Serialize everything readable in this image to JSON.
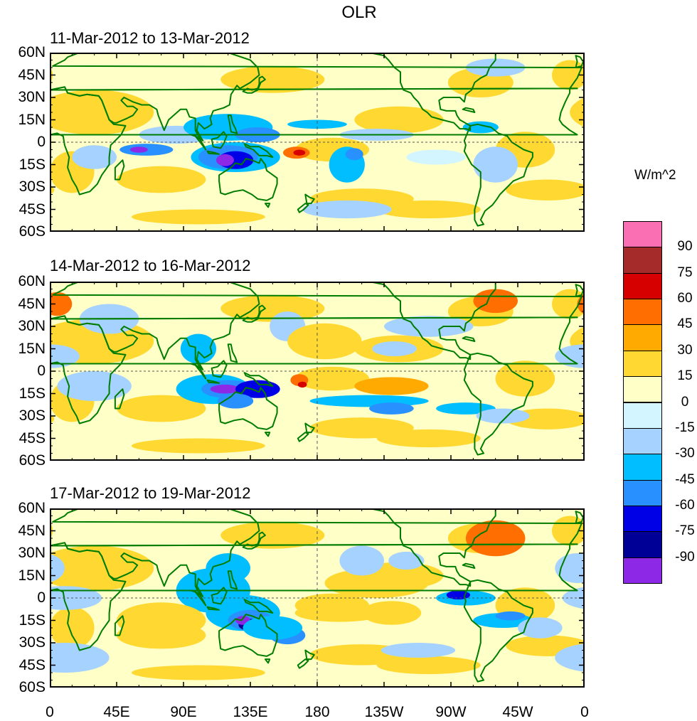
{
  "title": "OLR",
  "panels": [
    {
      "label": "11-Mar-2012 to 13-Mar-2012"
    },
    {
      "label": "14-Mar-2012 to 16-Mar-2012"
    },
    {
      "label": "17-Mar-2012 to 19-Mar-2012"
    }
  ],
  "lat_ticks": [
    "60N",
    "45N",
    "30N",
    "15N",
    "0",
    "15S",
    "30S",
    "45S",
    "60S"
  ],
  "lon_ticks": [
    "0",
    "45E",
    "90E",
    "135E",
    "180",
    "135W",
    "90W",
    "45W",
    "0"
  ],
  "colorbar": {
    "units": "W/m^2",
    "labels": [
      "90",
      "75",
      "60",
      "45",
      "30",
      "15",
      "0",
      "-15",
      "-30",
      "-45",
      "-60",
      "-75",
      "-90"
    ],
    "colors": [
      "#fa6eb4",
      "#a52a2a",
      "#d70000",
      "#ff6e00",
      "#ffaa00",
      "#ffd932",
      "#ffffc8",
      "#d2f5ff",
      "#a5d2ff",
      "#00beff",
      "#2891ff",
      "#0000e6",
      "#000096",
      "#8c28e6"
    ]
  },
  "land_color": "#007d00",
  "region": {
    "lon_range": [
      0,
      360
    ],
    "lat_range": [
      -60,
      60
    ]
  }
}
